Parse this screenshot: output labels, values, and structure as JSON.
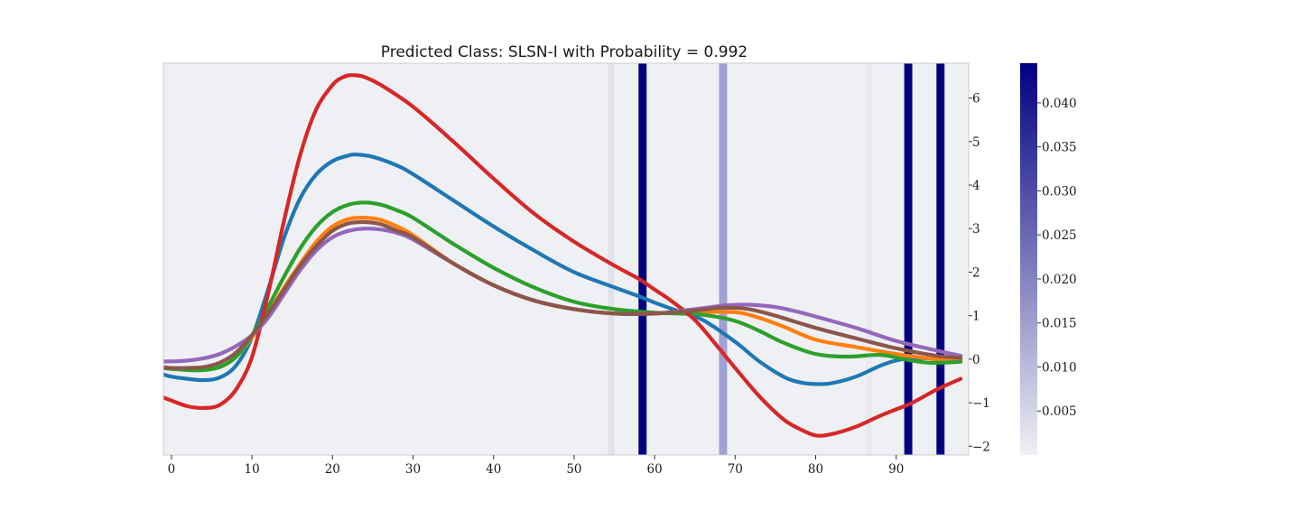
{
  "chart_data": {
    "type": "line",
    "title": "Predicted Class: SLSN-I with Probability = 0.992",
    "xlabel": "",
    "ylabel": "",
    "xlim": [
      -1,
      99
    ],
    "ylim": [
      -2.2,
      6.8
    ],
    "x_ticks": [
      0,
      10,
      20,
      30,
      40,
      50,
      60,
      70,
      80,
      90
    ],
    "x_tick_labels": [
      "0",
      "10",
      "20",
      "30",
      "40",
      "50",
      "60",
      "70",
      "80",
      "90"
    ],
    "y_ticks": [
      -2,
      -1,
      0,
      1,
      2,
      3,
      4,
      5,
      6
    ],
    "y_tick_labels": [
      "−2",
      "−1",
      "0",
      "1",
      "2",
      "3",
      "4",
      "5",
      "6"
    ],
    "y_axis_side": "right",
    "grid": false,
    "background_color": "#eff0f3",
    "series": [
      {
        "color": "#1f77b4",
        "x": [
          -1,
          0,
          2,
          4,
          6,
          8,
          10,
          12,
          14,
          16,
          18,
          20,
          22,
          23,
          25,
          28,
          30,
          35,
          40,
          45,
          50,
          55,
          58,
          60,
          63,
          66,
          70,
          73,
          76,
          78,
          80,
          82,
          85,
          88,
          90,
          92,
          95,
          98
        ],
        "y": [
          -0.35,
          -0.4,
          -0.45,
          -0.48,
          -0.42,
          -0.15,
          0.5,
          1.6,
          2.8,
          3.7,
          4.25,
          4.55,
          4.68,
          4.7,
          4.65,
          4.45,
          4.25,
          3.65,
          3.05,
          2.5,
          2.0,
          1.65,
          1.45,
          1.3,
          1.1,
          0.9,
          0.4,
          -0.05,
          -0.4,
          -0.53,
          -0.57,
          -0.55,
          -0.4,
          -0.15,
          -0.03,
          0.02,
          0.02,
          0.0
        ]
      },
      {
        "color": "#ff7f0e",
        "x": [
          -1,
          0,
          2,
          4,
          6,
          8,
          10,
          12,
          14,
          16,
          18,
          20,
          22,
          24,
          26,
          28,
          30,
          35,
          40,
          45,
          50,
          55,
          60,
          65,
          70,
          73,
          76,
          80,
          85,
          90,
          95,
          98
        ],
        "y": [
          -0.2,
          -0.22,
          -0.24,
          -0.24,
          -0.18,
          0.05,
          0.5,
          1.05,
          1.65,
          2.2,
          2.7,
          3.05,
          3.22,
          3.25,
          3.2,
          3.05,
          2.85,
          2.2,
          1.7,
          1.35,
          1.15,
          1.05,
          1.05,
          1.08,
          1.08,
          0.95,
          0.75,
          0.45,
          0.28,
          0.12,
          0.0,
          -0.02
        ]
      },
      {
        "color": "#2ca02c",
        "x": [
          -1,
          0,
          2,
          4,
          6,
          8,
          10,
          12,
          14,
          16,
          18,
          20,
          22,
          24,
          26,
          28,
          30,
          35,
          40,
          45,
          50,
          55,
          60,
          63,
          66,
          70,
          73,
          76,
          80,
          84,
          88,
          91,
          94,
          98
        ],
        "y": [
          -0.2,
          -0.22,
          -0.25,
          -0.25,
          -0.18,
          0.05,
          0.55,
          1.2,
          1.9,
          2.55,
          3.05,
          3.38,
          3.55,
          3.6,
          3.55,
          3.42,
          3.25,
          2.65,
          2.1,
          1.65,
          1.32,
          1.15,
          1.07,
          1.05,
          1.02,
          0.88,
          0.65,
          0.38,
          0.12,
          0.06,
          0.1,
          0.0,
          -0.08,
          -0.06
        ]
      },
      {
        "color": "#d62728",
        "x": [
          -1,
          0,
          2,
          4,
          6,
          8,
          10,
          12,
          14,
          16,
          18,
          20,
          21,
          22,
          23,
          24,
          26,
          30,
          35,
          40,
          45,
          50,
          55,
          58,
          60,
          62,
          65,
          68,
          70,
          73,
          76,
          78,
          80,
          82,
          85,
          88,
          90,
          92,
          95,
          98
        ],
        "y": [
          -0.88,
          -0.95,
          -1.08,
          -1.12,
          -1.05,
          -0.7,
          0.05,
          1.5,
          3.2,
          4.7,
          5.75,
          6.3,
          6.45,
          6.52,
          6.52,
          6.48,
          6.3,
          5.8,
          5.0,
          4.15,
          3.35,
          2.7,
          2.15,
          1.85,
          1.6,
          1.35,
          0.9,
          0.25,
          -0.2,
          -0.85,
          -1.38,
          -1.6,
          -1.75,
          -1.72,
          -1.55,
          -1.3,
          -1.15,
          -1.0,
          -0.7,
          -0.45
        ]
      },
      {
        "color": "#9467bd",
        "x": [
          -1,
          0,
          2,
          4,
          6,
          8,
          10,
          12,
          14,
          16,
          18,
          20,
          22,
          24,
          26,
          28,
          30,
          35,
          40,
          45,
          50,
          55,
          60,
          65,
          68,
          70,
          72,
          75,
          78,
          80,
          85,
          90,
          95,
          98
        ],
        "y": [
          -0.05,
          -0.05,
          -0.03,
          0.02,
          0.12,
          0.3,
          0.55,
          0.95,
          1.5,
          2.05,
          2.5,
          2.8,
          2.95,
          3.0,
          2.98,
          2.9,
          2.75,
          2.2,
          1.7,
          1.35,
          1.15,
          1.05,
          1.05,
          1.15,
          1.22,
          1.25,
          1.25,
          1.2,
          1.08,
          0.98,
          0.72,
          0.42,
          0.2,
          0.08
        ]
      },
      {
        "color": "#8c564b",
        "x": [
          -1,
          0,
          2,
          4,
          6,
          8,
          10,
          12,
          14,
          16,
          18,
          20,
          22,
          24,
          26,
          28,
          30,
          35,
          40,
          45,
          50,
          55,
          60,
          65,
          68,
          70,
          72,
          75,
          80,
          85,
          90,
          95,
          98
        ],
        "y": [
          -0.18,
          -0.2,
          -0.2,
          -0.18,
          -0.08,
          0.15,
          0.55,
          1.05,
          1.6,
          2.15,
          2.6,
          2.95,
          3.12,
          3.15,
          3.1,
          2.95,
          2.8,
          2.2,
          1.7,
          1.35,
          1.15,
          1.05,
          1.05,
          1.12,
          1.18,
          1.18,
          1.14,
          1.0,
          0.72,
          0.48,
          0.25,
          0.08,
          0.03
        ]
      }
    ],
    "highlight_bands": [
      {
        "x0": 54.2,
        "x1": 55.0,
        "color": "#e2e2ec"
      },
      {
        "x0": 58.0,
        "x1": 59.0,
        "color": "#000080"
      },
      {
        "x0": 68.0,
        "x1": 69.0,
        "color": "#a0a0d4"
      },
      {
        "x0": 86.3,
        "x1": 87.0,
        "color": "#e8e8ee"
      },
      {
        "x0": 91.0,
        "x1": 92.0,
        "color": "#000080"
      },
      {
        "x0": 95.0,
        "x1": 96.0,
        "color": "#000080"
      }
    ],
    "colorbar": {
      "range": [
        0.0,
        0.0445
      ],
      "ticks": [
        0.005,
        0.01,
        0.015,
        0.02,
        0.025,
        0.03,
        0.035,
        0.04
      ],
      "tick_labels": [
        "0.005",
        "0.010",
        "0.015",
        "0.020",
        "0.025",
        "0.030",
        "0.035",
        "0.040"
      ],
      "color_low": "#f0f0f5",
      "color_high": "#000080"
    }
  }
}
